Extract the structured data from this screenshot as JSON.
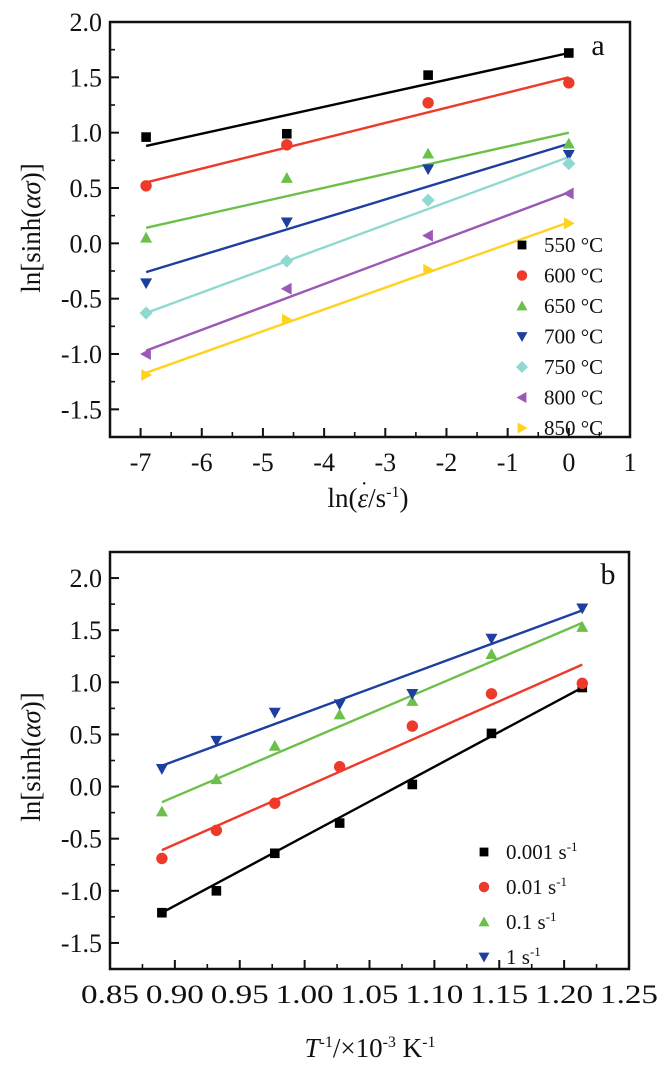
{
  "chart_data": [
    {
      "type": "scatter",
      "panel": "a",
      "title": "",
      "xlabel": "ln(ε̇/s⁻¹)",
      "ylabel": "ln[sinh(ασ)]",
      "xlim": [
        -7.5,
        1
      ],
      "ylim": [
        -1.75,
        2.0
      ],
      "xticks": [
        -7,
        -6,
        -5,
        -4,
        -3,
        -2,
        -1,
        0,
        1
      ],
      "xtick_labels": [
        "-7",
        "-6",
        "-5",
        "-4",
        "-3",
        "-2",
        "-1",
        "0",
        "1"
      ],
      "yticks": [
        -1.5,
        -1.0,
        -0.5,
        0.0,
        0.5,
        1.0,
        1.5,
        2.0
      ],
      "ytick_labels": [
        "-1.5",
        "-1.0",
        "-0.5",
        "0.0",
        "0.5",
        "1.0",
        "1.5",
        "2.0"
      ],
      "grid": false,
      "legend_position": "bottom-right",
      "x": [
        -6.91,
        -4.61,
        -2.3,
        0.0
      ],
      "series": [
        {
          "name": "550 °C",
          "color": "#000000",
          "marker": "square",
          "values": [
            0.96,
            0.99,
            1.52,
            1.72
          ],
          "fit": [
            0.88,
            1.72
          ]
        },
        {
          "name": "600 °C",
          "color": "#ee3a2a",
          "marker": "circle",
          "values": [
            0.52,
            0.89,
            1.27,
            1.45
          ],
          "fit": [
            0.55,
            1.5
          ]
        },
        {
          "name": "650 °C",
          "color": "#6cc04a",
          "marker": "triangle-up",
          "values": [
            0.05,
            0.59,
            0.81,
            0.9
          ],
          "fit": [
            0.14,
            1.0
          ]
        },
        {
          "name": "700 °C",
          "color": "#1f3fa0",
          "marker": "triangle-down",
          "values": [
            -0.36,
            0.19,
            0.67,
            0.8
          ],
          "fit": [
            -0.26,
            0.9
          ]
        },
        {
          "name": "750 °C",
          "color": "#8fd9d0",
          "marker": "diamond",
          "values": [
            -0.63,
            -0.16,
            0.39,
            0.72
          ],
          "fit": [
            -0.63,
            0.78
          ]
        },
        {
          "name": "800 °C",
          "color": "#9b59b6",
          "marker": "triangle-left",
          "values": [
            -1.0,
            -0.41,
            0.07,
            0.45
          ],
          "fit": [
            -0.97,
            0.46
          ]
        },
        {
          "name": "850 °C",
          "color": "#ffd21f",
          "marker": "triangle-right",
          "values": [
            -1.19,
            -0.69,
            -0.24,
            0.18
          ],
          "fit": [
            -1.17,
            0.19
          ]
        }
      ]
    },
    {
      "type": "scatter",
      "panel": "b",
      "title": "",
      "xlabel": "T⁻¹/×10⁻³ K⁻¹",
      "ylabel": "ln[sinh(ασ)]",
      "xlim": [
        0.85,
        1.25
      ],
      "ylim": [
        -1.75,
        2.25
      ],
      "xticks": [
        0.85,
        0.9,
        0.95,
        1.0,
        1.05,
        1.1,
        1.15,
        1.2,
        1.25
      ],
      "xtick_labels": [
        "0.85",
        "0.90",
        "0.95",
        "1.00",
        "1.05",
        "1.10",
        "1.15",
        "1.20",
        "1.25"
      ],
      "yticks": [
        -1.5,
        -1.0,
        -0.5,
        0.0,
        0.5,
        1.0,
        1.5,
        2.0
      ],
      "ytick_labels": [
        "-1.5",
        "-1.0",
        "-0.5",
        "0.0",
        "0.5",
        "1.0",
        "1.5",
        "2.0"
      ],
      "grid": false,
      "legend_position": "bottom-right",
      "x": [
        0.89,
        0.932,
        0.977,
        1.027,
        1.083,
        1.144,
        1.214
      ],
      "series": [
        {
          "name": "0.001 s⁻¹",
          "color": "#000000",
          "marker": "square",
          "values": [
            -1.21,
            -1.0,
            -0.64,
            -0.35,
            0.02,
            0.51,
            0.95
          ],
          "fit": [
            -1.21,
            0.95
          ]
        },
        {
          "name": "0.01 s⁻¹",
          "color": "#ee3a2a",
          "marker": "circle",
          "values": [
            -0.69,
            -0.42,
            -0.16,
            0.19,
            0.58,
            0.89,
            0.99
          ],
          "fit": [
            -0.61,
            1.17
          ]
        },
        {
          "name": "0.1 s⁻¹",
          "color": "#6cc04a",
          "marker": "triangle-up",
          "values": [
            -0.24,
            0.07,
            0.39,
            0.69,
            0.82,
            1.27,
            1.53
          ],
          "fit": [
            -0.15,
            1.57
          ]
        },
        {
          "name": "1 s⁻¹",
          "color": "#1f3fa0",
          "marker": "triangle-down",
          "values": [
            0.17,
            0.44,
            0.71,
            0.79,
            0.89,
            1.42,
            1.71
          ],
          "fit": [
            0.2,
            1.69
          ]
        }
      ]
    }
  ],
  "panels": {
    "a": {
      "letter": "a",
      "xlabel_main": "ln(",
      "xlabel_eps": "ε",
      "xlabel_tail": "/s",
      "xlabel_sup": "-1",
      "xlabel_close": ")"
    },
    "b": {
      "letter": "b",
      "xlabel_T": "T",
      "xlabel_sup1": "-1",
      "xlabel_mid": "/×10",
      "xlabel_sup2": "-3",
      "xlabel_K": " K",
      "xlabel_sup3": "-1"
    },
    "ylabel_pre": "ln[sinh(",
    "ylabel_alpha": "ασ",
    "ylabel_post": ")]"
  }
}
